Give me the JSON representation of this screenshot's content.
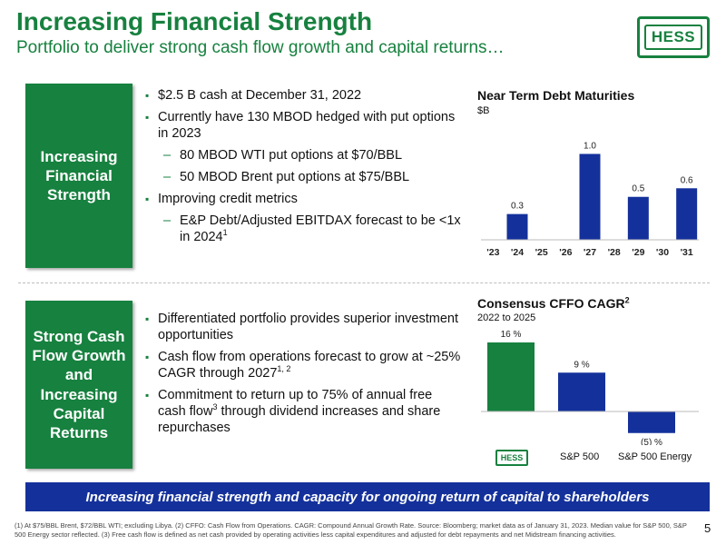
{
  "header": {
    "title": "Increasing Financial Strength",
    "subtitle": "Portfolio to deliver strong cash flow growth and capital returns…",
    "logo_text": "HESS"
  },
  "sections": [
    {
      "label": "Increasing\nFinancial\nStrength",
      "bullets": [
        "$2.5 B cash at December 31, 2022",
        "Currently have 130 MBOD hedged with put options in 2023",
        "80 MBOD WTI put options at $70/BBL",
        "50 MBOD Brent put options at $75/BBL",
        "Improving credit metrics",
        "E&P Debt/Adjusted EBITDAX forecast to be <1x in 2024",
        "1"
      ]
    },
    {
      "label": "Strong Cash\nFlow Growth\nand\nIncreasing\nCapital\nReturns",
      "bullets": [
        "Differentiated portfolio provides superior investment opportunities",
        "Cash flow from operations forecast to grow at ~25% CAGR through 2027",
        "1, 2",
        "Commitment to return up to 75% of annual free cash flow",
        "3",
        " through dividend increases and share repurchases"
      ]
    }
  ],
  "chart_data": [
    {
      "type": "bar",
      "title": "Near Term Debt Maturities",
      "subtitle": "$B",
      "categories": [
        "'23",
        "'24",
        "'25",
        "'26",
        "'27",
        "'28",
        "'29",
        "'30",
        "'31"
      ],
      "values": [
        0,
        0.3,
        0,
        0,
        1.0,
        0,
        0.5,
        0,
        0.6
      ],
      "data_labels": [
        "",
        "0.3",
        "",
        "",
        "1.0",
        "",
        "0.5",
        "",
        "0.6"
      ],
      "ylim": [
        0,
        1.1
      ],
      "color": "#14319b",
      "grid": false
    },
    {
      "type": "bar",
      "title": "Consensus CFFO CAGR",
      "title_sup": "2",
      "subtitle": "2022 to 2025",
      "categories": [
        "HESS",
        "S&P 500",
        "S&P 500 Energy"
      ],
      "values": [
        16,
        9,
        -5
      ],
      "data_labels": [
        "16 %",
        "9 %",
        "(5) %"
      ],
      "colors": [
        "#17813f",
        "#14319b",
        "#14319b"
      ],
      "ylim": [
        -6,
        17
      ],
      "grid": false
    }
  ],
  "banner": {
    "text": "Increasing financial strength and capacity for ongoing return of capital to shareholders"
  },
  "footer": {
    "footnote": "(1) At $75/BBL Brent, $72/BBL WTI; excluding Libya. (2) CFFO: Cash Flow from Operations. CAGR: Compound Annual Growth Rate. Source: Bloomberg; market data as of January 31, 2023. Median value for S&P 500, S&P 500 Energy sector reflected. (3) Free cash flow is defined as net cash provided by operating activities less capital expenditures and adjusted for debt repayments and net Midstream financing activities.",
    "page_number": "5"
  },
  "colors": {
    "green": "#17813f",
    "blue": "#14319b"
  }
}
